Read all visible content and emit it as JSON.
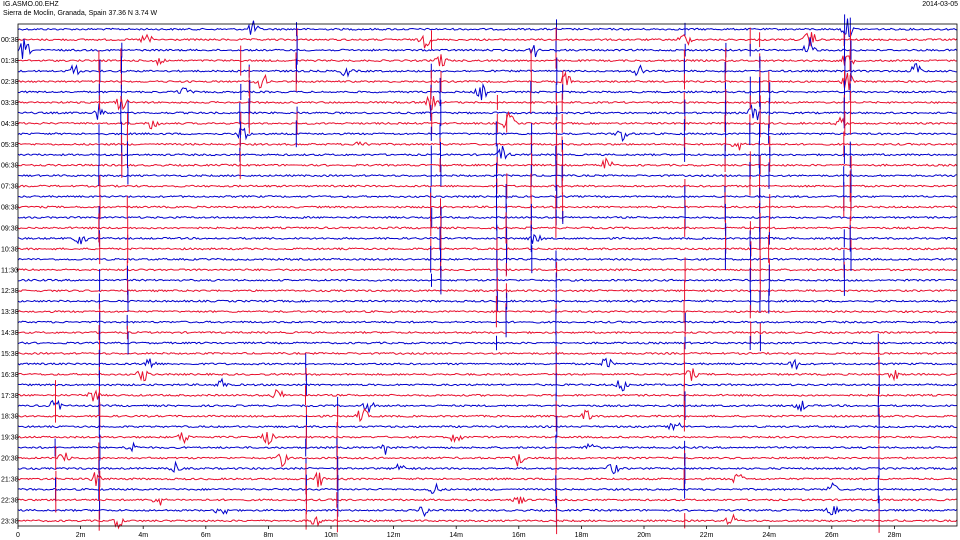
{
  "header": {
    "station": "IG.ASMO.00.EHZ",
    "location": "Sierra de Moclin, Granada, Spain  37.36 N 3.74 W",
    "date": "2014-03-05"
  },
  "chart_data": {
    "type": "line",
    "title": "",
    "xlabel": "",
    "ylabel": "",
    "xlim": [
      0,
      30
    ],
    "x_ticks": [
      0,
      2,
      4,
      6,
      8,
      10,
      12,
      14,
      16,
      18,
      20,
      22,
      24,
      26,
      28
    ],
    "x_tick_labels": [
      "0",
      "2m",
      "4m",
      "6m",
      "8m",
      "10m",
      "12m",
      "14m",
      "16m",
      "18m",
      "20m",
      "22m",
      "24m",
      "26m",
      "28m"
    ],
    "y_tick_labels": [
      "00:30",
      "01:30",
      "02:30",
      "03:30",
      "04:30",
      "05:30",
      "06:30",
      "07:30",
      "08:30",
      "09:30",
      "10:30",
      "11:30",
      "12:30",
      "13:30",
      "14:30",
      "15:30",
      "16:30",
      "17:30",
      "18:30",
      "19:30",
      "20:30",
      "21:30",
      "22:30",
      "23:30"
    ],
    "trace_interval_minutes": 30,
    "trace_count": 48,
    "first_trace_color": "#0000cc",
    "colors": [
      "#0000cc",
      "#e8102e"
    ],
    "grid": false,
    "events": [
      {
        "trace": 0,
        "t": 7.5,
        "amp": 1.5
      },
      {
        "trace": 0,
        "t": 26.5,
        "amp": 1.8
      },
      {
        "trace": 1,
        "t": 4.1,
        "amp": 1.2
      },
      {
        "trace": 1,
        "t": 13.0,
        "amp": 1.4
      },
      {
        "trace": 1,
        "t": 21.3,
        "amp": 1.5
      },
      {
        "trace": 1,
        "t": 25.3,
        "amp": 2.0
      },
      {
        "trace": 2,
        "t": 0.2,
        "amp": 2.0
      },
      {
        "trace": 2,
        "t": 16.5,
        "amp": 1.2
      },
      {
        "trace": 2,
        "t": 25.3,
        "amp": 2.2
      },
      {
        "trace": 3,
        "t": 4.5,
        "amp": 1.3
      },
      {
        "trace": 3,
        "t": 13.5,
        "amp": 1.5
      },
      {
        "trace": 3,
        "t": 26.5,
        "amp": 1.6
      },
      {
        "trace": 4,
        "t": 1.8,
        "amp": 1.4
      },
      {
        "trace": 4,
        "t": 10.5,
        "amp": 1.2
      },
      {
        "trace": 4,
        "t": 19.8,
        "amp": 1.5
      },
      {
        "trace": 4,
        "t": 28.7,
        "amp": 1.6
      },
      {
        "trace": 5,
        "t": 7.8,
        "amp": 1.6
      },
      {
        "trace": 5,
        "t": 17.5,
        "amp": 1.6
      },
      {
        "trace": 5,
        "t": 26.5,
        "amp": 2.0
      },
      {
        "trace": 6,
        "t": 5.3,
        "amp": 1.1
      },
      {
        "trace": 6,
        "t": 14.8,
        "amp": 1.5
      },
      {
        "trace": 7,
        "t": 3.3,
        "amp": 1.8
      },
      {
        "trace": 7,
        "t": 13.2,
        "amp": 1.5
      },
      {
        "trace": 8,
        "t": 2.6,
        "amp": 1.6
      },
      {
        "trace": 8,
        "t": 23.5,
        "amp": 2.4
      },
      {
        "trace": 9,
        "t": 4.3,
        "amp": 1.2
      },
      {
        "trace": 9,
        "t": 15.7,
        "amp": 2.0
      },
      {
        "trace": 9,
        "t": 26.3,
        "amp": 1.1
      },
      {
        "trace": 10,
        "t": 7.2,
        "amp": 1.8
      },
      {
        "trace": 10,
        "t": 19.3,
        "amp": 1.5
      },
      {
        "trace": 11,
        "t": 11.0,
        "amp": 1.2
      },
      {
        "trace": 11,
        "t": 23.0,
        "amp": 1.3
      },
      {
        "trace": 12,
        "t": 15.5,
        "amp": 1.5
      },
      {
        "trace": 13,
        "t": 18.8,
        "amp": 1.5
      },
      {
        "trace": 20,
        "t": 2.0,
        "amp": 1.3
      },
      {
        "trace": 20,
        "t": 16.5,
        "amp": 1.3
      },
      {
        "trace": 32,
        "t": 4.2,
        "amp": 1.5
      },
      {
        "trace": 32,
        "t": 18.8,
        "amp": 1.2
      },
      {
        "trace": 32,
        "t": 24.8,
        "amp": 1.2
      },
      {
        "trace": 33,
        "t": 4.0,
        "amp": 1.3
      },
      {
        "trace": 33,
        "t": 21.5,
        "amp": 1.2
      },
      {
        "trace": 33,
        "t": 28.0,
        "amp": 1.0
      },
      {
        "trace": 34,
        "t": 6.5,
        "amp": 1.2
      },
      {
        "trace": 34,
        "t": 19.3,
        "amp": 1.4
      },
      {
        "trace": 35,
        "t": 2.4,
        "amp": 1.4
      },
      {
        "trace": 35,
        "t": 8.3,
        "amp": 1.2
      },
      {
        "trace": 36,
        "t": 1.2,
        "amp": 1.3
      },
      {
        "trace": 36,
        "t": 11.2,
        "amp": 1.1
      },
      {
        "trace": 36,
        "t": 25.0,
        "amp": 1.1
      },
      {
        "trace": 37,
        "t": 11.0,
        "amp": 1.6
      },
      {
        "trace": 37,
        "t": 18.2,
        "amp": 1.3
      },
      {
        "trace": 38,
        "t": 21.0,
        "amp": 1.3
      },
      {
        "trace": 39,
        "t": 5.3,
        "amp": 1.2
      },
      {
        "trace": 39,
        "t": 8.0,
        "amp": 1.4
      },
      {
        "trace": 39,
        "t": 14.0,
        "amp": 1.3
      },
      {
        "trace": 40,
        "t": 3.6,
        "amp": 1.3
      },
      {
        "trace": 40,
        "t": 11.8,
        "amp": 1.4
      },
      {
        "trace": 40,
        "t": 18.3,
        "amp": 1.3
      },
      {
        "trace": 41,
        "t": 1.5,
        "amp": 1.5
      },
      {
        "trace": 41,
        "t": 8.4,
        "amp": 1.6
      },
      {
        "trace": 41,
        "t": 16.0,
        "amp": 1.6
      },
      {
        "trace": 42,
        "t": 5.0,
        "amp": 1.2
      },
      {
        "trace": 42,
        "t": 12.2,
        "amp": 1.3
      },
      {
        "trace": 42,
        "t": 19.0,
        "amp": 1.2
      },
      {
        "trace": 43,
        "t": 2.5,
        "amp": 1.3
      },
      {
        "trace": 43,
        "t": 9.6,
        "amp": 1.5
      },
      {
        "trace": 43,
        "t": 23.0,
        "amp": 1.2
      },
      {
        "trace": 44,
        "t": 13.3,
        "amp": 1.2
      },
      {
        "trace": 44,
        "t": 26.0,
        "amp": 1.2
      },
      {
        "trace": 45,
        "t": 4.5,
        "amp": 1.2
      },
      {
        "trace": 45,
        "t": 16.0,
        "amp": 1.3
      },
      {
        "trace": 46,
        "t": 6.5,
        "amp": 1.3
      },
      {
        "trace": 46,
        "t": 13.0,
        "amp": 1.2
      },
      {
        "trace": 46,
        "t": 26.0,
        "amp": 1.3
      },
      {
        "trace": 47,
        "t": 3.2,
        "amp": 1.2
      },
      {
        "trace": 47,
        "t": 9.5,
        "amp": 1.3
      },
      {
        "trace": 47,
        "t": 22.8,
        "amp": 1.2
      }
    ],
    "spikes": [
      {
        "t": 1.2,
        "first": 33,
        "last": 47
      },
      {
        "t": 2.6,
        "first": 1,
        "last": 47
      },
      {
        "t": 3.3,
        "first": 1,
        "last": 13
      },
      {
        "t": 3.5,
        "first": 8,
        "last": 30
      },
      {
        "t": 7.1,
        "first": 3,
        "last": 13
      },
      {
        "t": 7.4,
        "first": 3,
        "last": 12
      },
      {
        "t": 8.9,
        "first": 0,
        "last": 10
      },
      {
        "t": 9.2,
        "first": 31,
        "last": 47
      },
      {
        "t": 10.2,
        "first": 34,
        "last": 47
      },
      {
        "t": 13.2,
        "first": 1,
        "last": 25
      },
      {
        "t": 13.5,
        "first": 5,
        "last": 24
      },
      {
        "t": 15.3,
        "first": 7,
        "last": 30
      },
      {
        "t": 15.6,
        "first": 8,
        "last": 28
      },
      {
        "t": 16.4,
        "first": 3,
        "last": 22
      },
      {
        "t": 17.2,
        "first": 0,
        "last": 47
      },
      {
        "t": 17.4,
        "first": 5,
        "last": 20
      },
      {
        "t": 21.3,
        "first": 0,
        "last": 47
      },
      {
        "t": 22.6,
        "first": 2,
        "last": 22
      },
      {
        "t": 23.4,
        "first": 1,
        "last": 30
      },
      {
        "t": 23.7,
        "first": 1,
        "last": 30
      },
      {
        "t": 24.0,
        "first": 5,
        "last": 26
      },
      {
        "t": 26.4,
        "first": 0,
        "last": 24
      },
      {
        "t": 26.6,
        "first": 0,
        "last": 22
      },
      {
        "t": 27.5,
        "first": 30,
        "last": 47
      }
    ]
  }
}
